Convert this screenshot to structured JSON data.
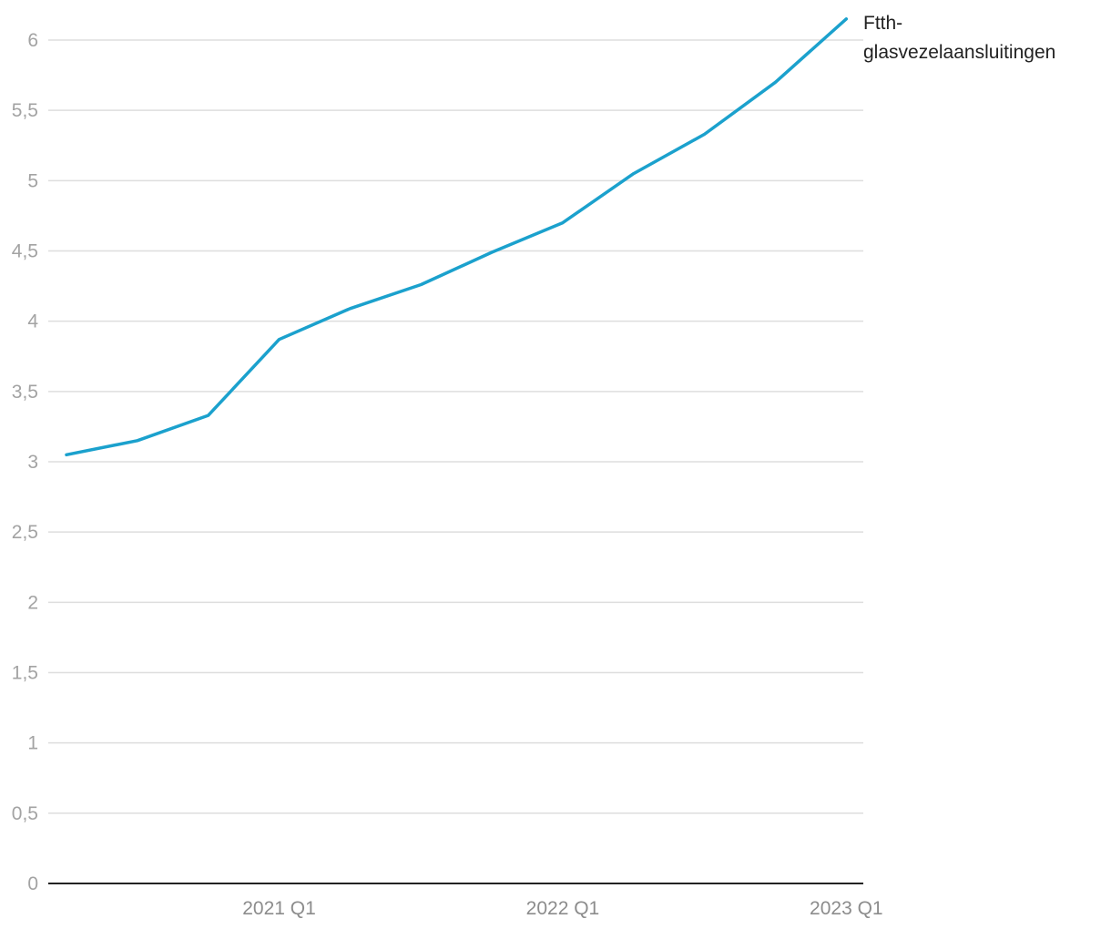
{
  "chart_data": {
    "type": "line",
    "title": "",
    "xlabel": "",
    "ylabel": "",
    "x": [
      "2020 Q2",
      "2020 Q3",
      "2020 Q4",
      "2021 Q1",
      "2021 Q2",
      "2021 Q3",
      "2021 Q4",
      "2022 Q1",
      "2022 Q2",
      "2022 Q3",
      "2022 Q4",
      "2023 Q1"
    ],
    "x_tick_labels": [
      "2021 Q1",
      "2022 Q1",
      "2023 Q1"
    ],
    "ylim": [
      0,
      6
    ],
    "y_ticks": [
      0,
      0.5,
      1,
      1.5,
      2,
      2.5,
      3,
      3.5,
      4,
      4.5,
      5,
      5.5,
      6
    ],
    "y_tick_labels": [
      "0",
      "0,5",
      "1",
      "1,5",
      "2",
      "2,5",
      "3",
      "3,5",
      "4",
      "4,5",
      "5",
      "5,5",
      "6"
    ],
    "grid": true,
    "series": [
      {
        "name": "Ftth-glasvezelaansluitingen",
        "label_lines": [
          "Ftth-",
          "glasvezelaansluitingen"
        ],
        "color": "#1ba1cd",
        "values": [
          3.05,
          3.15,
          3.33,
          3.87,
          4.09,
          4.26,
          4.49,
          4.7,
          5.05,
          5.33,
          5.7,
          6.15
        ]
      }
    ],
    "legend": "direct-label-right"
  }
}
